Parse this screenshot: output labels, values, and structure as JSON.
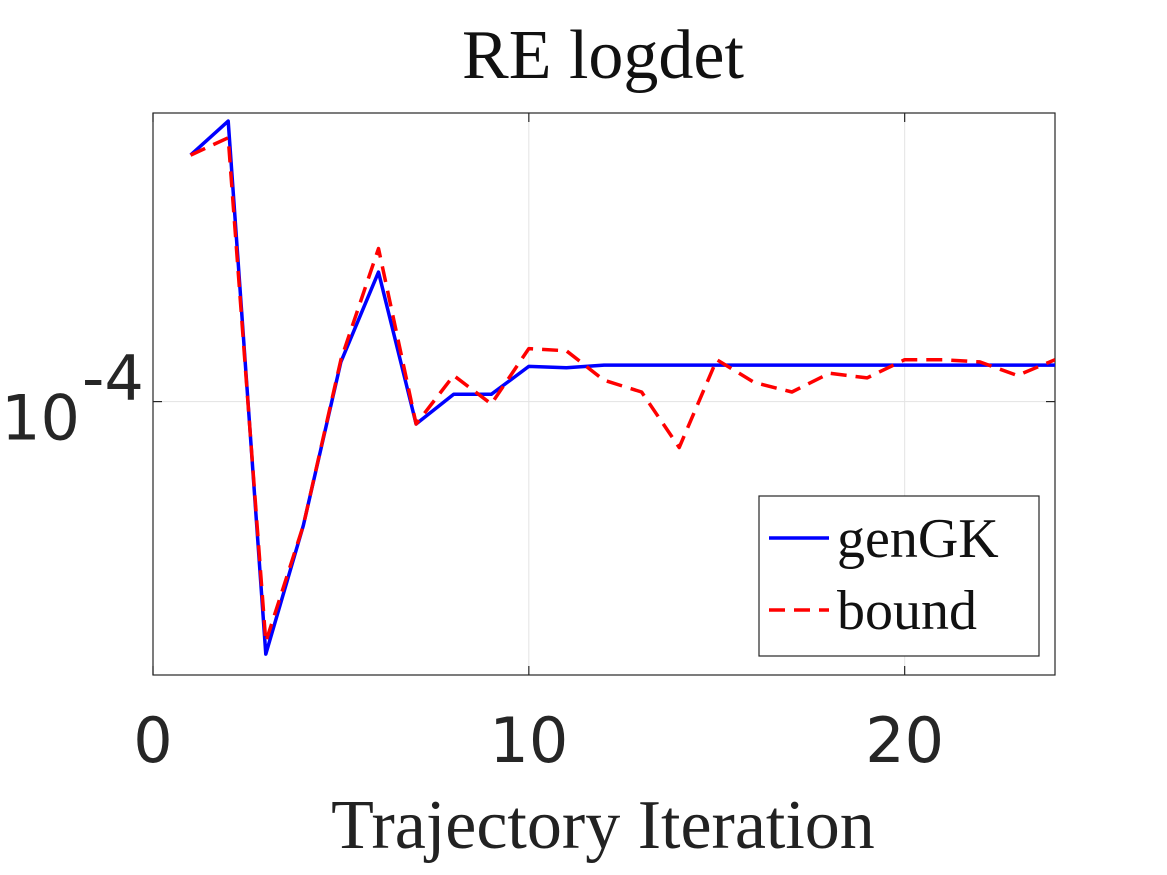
{
  "chart_data": {
    "type": "line",
    "title": "RE logdet",
    "xlabel": "Trajectory Iteration",
    "ylabel": "",
    "yscale": "log",
    "xlim": [
      0,
      24
    ],
    "ylim": [
      5.7e-05,
      0.000181
    ],
    "xticks": [
      0,
      10,
      20
    ],
    "ytick_values": [
      0.0001
    ],
    "ytick_labels": [
      {
        "base": "10",
        "exp": "-4"
      }
    ],
    "grid": true,
    "legend_position": "bottom-right",
    "x": [
      1,
      2,
      3,
      4,
      5,
      6,
      7,
      8,
      9,
      10,
      11,
      12,
      13,
      14,
      15,
      16,
      17,
      18,
      19,
      20,
      21,
      22,
      23,
      24
    ],
    "series": [
      {
        "name": "genGK",
        "color": "#0000ff",
        "style": "solid",
        "values": [
          0.000166,
          0.000178,
          5.95e-05,
          7.75e-05,
          0.0001085,
          0.0001305,
          9.55e-05,
          0.0001015,
          0.0001015,
          0.0001075,
          0.0001072,
          0.0001078,
          0.0001078,
          0.0001078,
          0.0001078,
          0.0001078,
          0.0001078,
          0.0001078,
          0.0001078,
          0.0001078,
          0.0001078,
          0.0001078,
          0.0001078,
          0.0001078
        ]
      },
      {
        "name": "bound",
        "color": "#ff0000",
        "style": "dashed",
        "values": [
          0.000166,
          0.000172,
          6.1e-05,
          7.75e-05,
          0.000109,
          0.000137,
          9.55e-05,
          0.0001055,
          9.95e-05,
          0.0001115,
          0.000111,
          0.0001045,
          0.000102,
          9.1e-05,
          0.000109,
          0.000104,
          0.000102,
          0.000106,
          0.000105,
          0.000109,
          0.000109,
          0.0001085,
          0.0001055,
          0.000109
        ]
      }
    ]
  }
}
